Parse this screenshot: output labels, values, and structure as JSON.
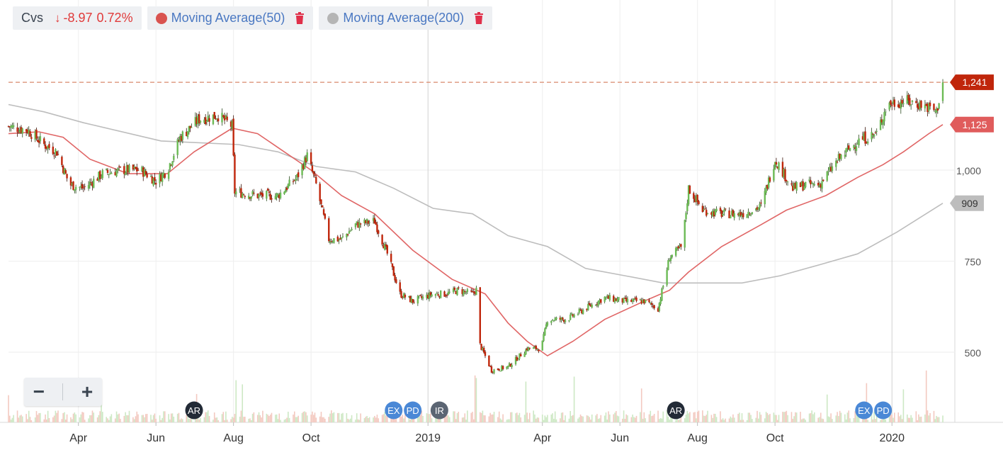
{
  "legend": {
    "symbol": "Cvs",
    "change": "-8.97",
    "change_pct": "0.72%",
    "ma50_label": "Moving Average(50)",
    "ma200_label": "Moving Average(200)"
  },
  "zoom": {
    "minus": "−",
    "plus": "+"
  },
  "colors": {
    "up": "#6cbb55",
    "down": "#c0260b",
    "ma50": "#e06666",
    "ma200": "#bdbdbd",
    "last_price_tag": "#c0260b",
    "ma50_tag": "#e05c5c",
    "ma200_tag": "#bdbdbd",
    "grid": "#eeeeee"
  },
  "chart_data": {
    "type": "candlestick",
    "title": "",
    "x_start": "2018-02-05",
    "x_end": "2020-02-15",
    "x_ticks": [
      {
        "date": "2018-04-01",
        "label": "Apr"
      },
      {
        "date": "2018-06-01",
        "label": "Jun"
      },
      {
        "date": "2018-08-01",
        "label": "Aug"
      },
      {
        "date": "2018-10-01",
        "label": "Oct"
      },
      {
        "date": "2019-01-01",
        "label": "2019"
      },
      {
        "date": "2019-04-01",
        "label": "Apr"
      },
      {
        "date": "2019-06-01",
        "label": "Jun"
      },
      {
        "date": "2019-08-01",
        "label": "Aug"
      },
      {
        "date": "2019-10-01",
        "label": "Oct"
      },
      {
        "date": "2020-01-01",
        "label": "2020"
      }
    ],
    "y_ticks": [
      500,
      750,
      1000
    ],
    "ylim": [
      300,
      1300
    ],
    "price_tags": [
      {
        "name": "last",
        "value": 1241,
        "label": "1,241"
      },
      {
        "name": "ma50",
        "value": 1125,
        "label": "1,125"
      },
      {
        "name": "ma200",
        "value": 909,
        "label": "909"
      }
    ],
    "price_path": [
      [
        "2018-02-05",
        1120
      ],
      [
        "2018-02-20",
        1110
      ],
      [
        "2018-03-05",
        1070
      ],
      [
        "2018-03-15",
        1050
      ],
      [
        "2018-03-25",
        960
      ],
      [
        "2018-04-05",
        950
      ],
      [
        "2018-04-20",
        990
      ],
      [
        "2018-05-05",
        1000
      ],
      [
        "2018-05-20",
        1000
      ],
      [
        "2018-06-01",
        970
      ],
      [
        "2018-06-10",
        1000
      ],
      [
        "2018-06-20",
        1090
      ],
      [
        "2018-07-05",
        1140
      ],
      [
        "2018-07-20",
        1150
      ],
      [
        "2018-07-31",
        1120
      ],
      [
        "2018-08-02",
        940
      ],
      [
        "2018-08-20",
        930
      ],
      [
        "2018-09-05",
        930
      ],
      [
        "2018-09-20",
        980
      ],
      [
        "2018-09-28",
        1040
      ],
      [
        "2018-10-05",
        960
      ],
      [
        "2018-10-15",
        810
      ],
      [
        "2018-10-25",
        810
      ],
      [
        "2018-11-05",
        850
      ],
      [
        "2018-11-20",
        860
      ],
      [
        "2018-11-30",
        770
      ],
      [
        "2018-12-10",
        660
      ],
      [
        "2018-12-20",
        640
      ],
      [
        "2019-01-05",
        660
      ],
      [
        "2019-01-15",
        660
      ],
      [
        "2019-01-25",
        670
      ],
      [
        "2019-02-05",
        660
      ],
      [
        "2019-02-10",
        680
      ],
      [
        "2019-02-11",
        520
      ],
      [
        "2019-02-20",
        450
      ],
      [
        "2019-03-05",
        460
      ],
      [
        "2019-03-20",
        510
      ],
      [
        "2019-03-31",
        510
      ],
      [
        "2019-04-05",
        590
      ],
      [
        "2019-04-20",
        590
      ],
      [
        "2019-05-05",
        620
      ],
      [
        "2019-05-20",
        650
      ],
      [
        "2019-06-05",
        640
      ],
      [
        "2019-06-20",
        640
      ],
      [
        "2019-07-01",
        620
      ],
      [
        "2019-07-10",
        760
      ],
      [
        "2019-07-20",
        790
      ],
      [
        "2019-07-25",
        950
      ],
      [
        "2019-08-05",
        890
      ],
      [
        "2019-08-20",
        880
      ],
      [
        "2019-09-05",
        880
      ],
      [
        "2019-09-20",
        900
      ],
      [
        "2019-10-01",
        1030
      ],
      [
        "2019-10-15",
        950
      ],
      [
        "2019-10-25",
        960
      ],
      [
        "2019-11-05",
        960
      ],
      [
        "2019-11-20",
        1030
      ],
      [
        "2019-12-05",
        1080
      ],
      [
        "2019-12-20",
        1100
      ],
      [
        "2019-12-28",
        1180
      ],
      [
        "2020-01-10",
        1190
      ],
      [
        "2020-01-25",
        1180
      ],
      [
        "2020-02-05",
        1160
      ],
      [
        "2020-02-10",
        1241
      ]
    ],
    "ma50_path": [
      [
        "2018-02-05",
        1100
      ],
      [
        "2018-03-01",
        1105
      ],
      [
        "2018-03-20",
        1090
      ],
      [
        "2018-04-10",
        1030
      ],
      [
        "2018-05-10",
        990
      ],
      [
        "2018-06-10",
        990
      ],
      [
        "2018-07-01",
        1050
      ],
      [
        "2018-07-31",
        1115
      ],
      [
        "2018-08-20",
        1100
      ],
      [
        "2018-09-10",
        1050
      ],
      [
        "2018-10-01",
        1000
      ],
      [
        "2018-10-25",
        930
      ],
      [
        "2018-11-20",
        880
      ],
      [
        "2018-12-20",
        780
      ],
      [
        "2019-01-20",
        700
      ],
      [
        "2019-02-15",
        660
      ],
      [
        "2019-03-05",
        580
      ],
      [
        "2019-03-20",
        530
      ],
      [
        "2019-04-05",
        490
      ],
      [
        "2019-04-25",
        530
      ],
      [
        "2019-05-20",
        590
      ],
      [
        "2019-06-20",
        640
      ],
      [
        "2019-07-10",
        670
      ],
      [
        "2019-07-25",
        720
      ],
      [
        "2019-08-20",
        790
      ],
      [
        "2019-09-20",
        850
      ],
      [
        "2019-10-10",
        890
      ],
      [
        "2019-11-10",
        930
      ],
      [
        "2019-12-05",
        980
      ],
      [
        "2019-12-25",
        1015
      ],
      [
        "2020-01-10",
        1050
      ],
      [
        "2020-01-30",
        1100
      ],
      [
        "2020-02-10",
        1125
      ]
    ],
    "ma200_path": [
      [
        "2018-02-05",
        1180
      ],
      [
        "2018-03-05",
        1160
      ],
      [
        "2018-04-05",
        1130
      ],
      [
        "2018-06-05",
        1080
      ],
      [
        "2018-08-05",
        1070
      ],
      [
        "2018-09-05",
        1050
      ],
      [
        "2018-10-05",
        1010
      ],
      [
        "2018-11-05",
        995
      ],
      [
        "2018-12-05",
        950
      ],
      [
        "2019-01-05",
        895
      ],
      [
        "2019-02-05",
        880
      ],
      [
        "2019-03-05",
        820
      ],
      [
        "2019-04-05",
        790
      ],
      [
        "2019-05-05",
        730
      ],
      [
        "2019-06-05",
        710
      ],
      [
        "2019-07-05",
        690
      ],
      [
        "2019-08-05",
        690
      ],
      [
        "2019-09-05",
        690
      ],
      [
        "2019-10-05",
        710
      ],
      [
        "2019-11-05",
        740
      ],
      [
        "2019-12-05",
        770
      ],
      [
        "2020-01-05",
        830
      ],
      [
        "2020-02-10",
        909
      ]
    ],
    "events": [
      {
        "date": "2018-07-01",
        "label": "AR"
      },
      {
        "date": "2018-12-05",
        "label": "EX"
      },
      {
        "date": "2018-12-20",
        "label": "PD"
      },
      {
        "date": "2019-01-10",
        "label": "IR"
      },
      {
        "date": "2019-07-15",
        "label": "AR"
      },
      {
        "date": "2019-12-10",
        "label": "EX"
      },
      {
        "date": "2019-12-25",
        "label": "PD"
      }
    ]
  }
}
